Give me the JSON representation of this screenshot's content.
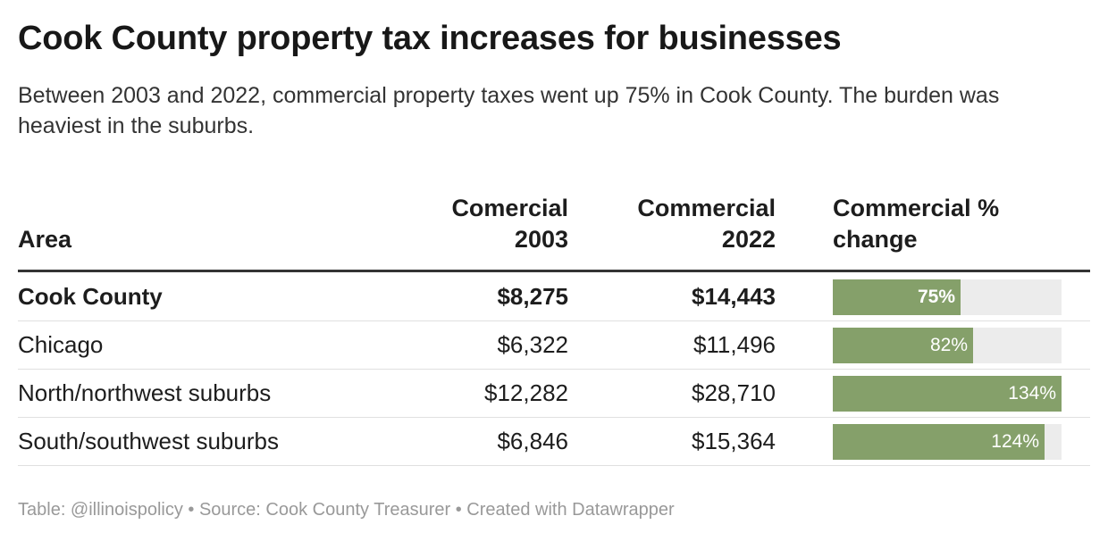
{
  "title": "Cook County property tax increases for businesses",
  "subtitle": "Between 2003 and 2022, commercial property taxes went up 75% in Cook County. The burden was heaviest in the suburbs.",
  "columns": {
    "area": "Area",
    "c2003_line1": "Comercial",
    "c2003_line2": "2003",
    "c2022_line1": "Commercial",
    "c2022_line2": "2022",
    "pct_line1": "Commercial %",
    "pct_line2": "change"
  },
  "bar_color": "#85a06a",
  "bar_track_color": "#ececec",
  "bar_max": 134,
  "chart_data": {
    "type": "table",
    "title": "Cook County property tax increases for businesses",
    "columns": [
      "Area",
      "Comercial 2003",
      "Commercial 2022",
      "Commercial % change"
    ],
    "rows": [
      {
        "area": "Cook County",
        "c2003": "$8,275",
        "c2022": "$14,443",
        "pct_label": "75%",
        "pct": 75,
        "bold": true
      },
      {
        "area": "Chicago",
        "c2003": "$6,322",
        "c2022": "$11,496",
        "pct_label": "82%",
        "pct": 82,
        "bold": false
      },
      {
        "area": "North/northwest suburbs",
        "c2003": "$12,282",
        "c2022": "$28,710",
        "pct_label": "134%",
        "pct": 134,
        "bold": false
      },
      {
        "area": "South/southwest suburbs",
        "c2003": "$6,846",
        "c2022": "$15,364",
        "pct_label": "124%",
        "pct": 124,
        "bold": false
      }
    ]
  },
  "footer": "Table: @illinoispolicy • Source: Cook County Treasurer • Created with Datawrapper"
}
